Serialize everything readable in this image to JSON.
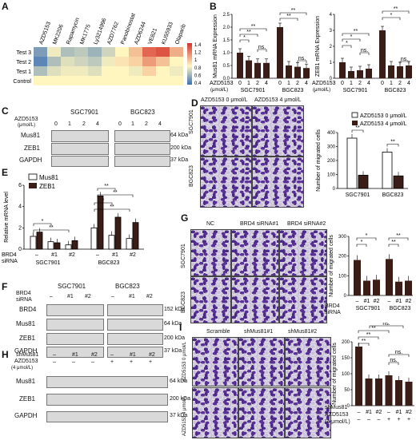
{
  "panels": {
    "A": {
      "label": "A",
      "drugs": [
        "AZD5153",
        "MK2206",
        "Rapamycin",
        "MK1775",
        "Ly3214996",
        "AZD7762",
        "Panobinostat",
        "AZD6244",
        "VE821",
        "KU55933",
        "Olaparib"
      ],
      "rows": [
        "Test 3",
        "Test 2",
        "Test 1",
        "Control"
      ],
      "cells": [
        [
          0.2,
          0.55,
          0.35,
          0.4,
          0.3,
          0.45,
          0.6,
          0.75,
          1.0,
          1.05,
          0.8
        ],
        [
          0.1,
          0.35,
          0.5,
          0.45,
          0.4,
          0.55,
          0.65,
          0.7,
          0.85,
          0.75,
          0.6
        ],
        [
          0.35,
          0.5,
          0.55,
          0.55,
          0.5,
          0.6,
          0.6,
          0.55,
          0.7,
          0.6,
          0.55
        ],
        [
          0.6,
          0.6,
          0.6,
          0.6,
          0.6,
          0.6,
          0.6,
          0.6,
          0.6,
          0.6,
          0.6
        ]
      ],
      "colorbar_ticks": [
        "1.4",
        "1.2",
        "1",
        "0.8",
        "0.6",
        "0.4"
      ],
      "colors": {
        "low": "#3a6fb5",
        "mid": "#fff6bf",
        "high": "#d73027"
      }
    },
    "B": {
      "label": "B",
      "left_ylabel": "Mus81 mRNA Expression",
      "right_ylabel": "ZEB1 mRNA Expression",
      "left_yticks": [
        "0.0",
        "0.5",
        "1.0",
        "1.5",
        "2.0",
        "2.5"
      ],
      "right_yticks": [
        "0",
        "1",
        "2",
        "3",
        "4"
      ],
      "treatment": "AZD5153",
      "unit": "(μmol/L)",
      "doses": [
        "0",
        "1",
        "2",
        "4"
      ],
      "groups": [
        "SGC7901",
        "BGC823"
      ],
      "sig": "**",
      "sig1": "*",
      "ns": "ns."
    },
    "C": {
      "label": "C",
      "treatment": "AZD5153",
      "unit": "(μmol/L)",
      "groups": [
        "SGC7901",
        "BGC823"
      ],
      "doses": [
        "0",
        "1",
        "2",
        "4"
      ],
      "rows": [
        "Mus81",
        "ZEB1",
        "GAPDH"
      ],
      "sizes": [
        "64 kDa",
        "200 kDa",
        "37 kDa"
      ]
    },
    "D": {
      "label": "D",
      "cond1": "AZD5153 0 μmol/L",
      "cond2": "AZD5153 4 μmol/L",
      "rows": [
        "SGC7901",
        "BGC823"
      ],
      "ylabel": "Number of migrated cells",
      "yticks": [
        "0",
        "100",
        "200",
        "300",
        "400"
      ],
      "legend1": "AZD5153 0 μmol/L",
      "legend2": "AZD5153 4 μmol/L",
      "groups": [
        "SGC7901",
        "BGC823"
      ],
      "sig": "**"
    },
    "E": {
      "label": "E",
      "ylabel": "Relative mRNA level",
      "legend1": "Mus81",
      "legend2": "ZEB1",
      "yticks": [
        "0",
        "2",
        "4",
        "6"
      ],
      "treat1": "BRD4",
      "treat2": "siRNA",
      "xlabels": [
        "–",
        "#1",
        "#2",
        "–",
        "#1",
        "#2"
      ],
      "groups": [
        "SGC7901",
        "BGC823"
      ],
      "sig": "**",
      "sig1": "*"
    },
    "F": {
      "label": "F",
      "treat1": "BRD4",
      "treat2": "siRNA",
      "groups": [
        "SGC7901",
        "BGC823"
      ],
      "lanes": [
        "–",
        "#1",
        "#2",
        "–",
        "#1",
        "#2"
      ],
      "rows": [
        "BRD4",
        "Mus81",
        "ZEB1",
        "GAPDH"
      ],
      "sizes": [
        "152 kDa",
        "64 kDa",
        "200 kDa",
        "37 kDa"
      ]
    },
    "G": {
      "label": "G",
      "cols": [
        "NC",
        "BRD4 siRNA#1",
        "BRD4 siRNA#2"
      ],
      "rows": [
        "SGC7901",
        "BGC823"
      ],
      "ylabel": "Number of migrated cells",
      "yticks": [
        "0",
        "100",
        "200",
        "300"
      ],
      "treat1": "BRD4",
      "treat2": "siRNA",
      "xlabels": [
        "–",
        "#1",
        "#2",
        "–",
        "#1",
        "#2"
      ],
      "groups": [
        "SGC7901",
        "BGC823"
      ],
      "sig": "**",
      "sig1": "*"
    },
    "H": {
      "label": "H",
      "treat1": "shMus81",
      "treat2": "AZD5153",
      "treat3": "(4 μmol/L)",
      "sh_values": [
        "–",
        "#1",
        "#2",
        "–",
        "#1",
        "#2"
      ],
      "azd_values": [
        "–",
        "–",
        "–",
        "+",
        "+",
        "+"
      ],
      "rows": [
        "Mus81",
        "ZEB1",
        "GAPDH"
      ],
      "sizes": [
        "64 kDa",
        "200 kDa",
        "37 kDa"
      ]
    },
    "I": {
      "label": "I",
      "cols": [
        "Scramble",
        "shMus81#1",
        "shMus81#2"
      ],
      "row_top": "AZD5153 0 μmol/L",
      "row_bottom": "AZD5153 4 μmol/L",
      "ylabel": "Number of migrated cells",
      "yticks": [
        "0",
        "50",
        "100",
        "150",
        "200"
      ],
      "treat1": "shMus81",
      "treat2": "AZD5153",
      "treat3": "(4 μmol/L)",
      "sh_values": [
        "–",
        "#1",
        "#2",
        "–",
        "#1",
        "#2"
      ],
      "azd_values": [
        "–",
        "–",
        "–",
        "+",
        "+",
        "+"
      ],
      "sig": "**",
      "ns": "ns."
    }
  },
  "chart_data": [
    {
      "type": "heatmap",
      "panel": "A",
      "rows": [
        "Test 3",
        "Test 2",
        "Test 1",
        "Control"
      ],
      "columns": [
        "AZD5153",
        "MK2206",
        "Rapamycin",
        "MK1775",
        "Ly3214996",
        "AZD7762",
        "Panobinostat",
        "AZD6244",
        "VE821",
        "KU55933",
        "Olaparib"
      ],
      "colorbar": [
        0.4,
        1.4
      ]
    },
    {
      "type": "bar",
      "panel": "B-left",
      "ylabel": "Mus81 mRNA Expression",
      "categories": [
        "0",
        "1",
        "2",
        "4",
        "0",
        "1",
        "2",
        "4"
      ],
      "values": [
        1.0,
        0.7,
        0.6,
        0.6,
        2.0,
        0.5,
        0.45,
        0.4
      ],
      "ylim": [
        0,
        2.5
      ]
    },
    {
      "type": "bar",
      "panel": "B-right",
      "ylabel": "ZEB1 mRNA Expression",
      "categories": [
        "0",
        "1",
        "2",
        "4",
        "0",
        "1",
        "2",
        "4"
      ],
      "values": [
        1.0,
        0.45,
        0.5,
        0.6,
        3.0,
        0.8,
        0.75,
        0.8
      ],
      "ylim": [
        0,
        4
      ]
    },
    {
      "type": "bar",
      "panel": "D",
      "ylabel": "Number of migrated cells",
      "categories": [
        "SGC7901",
        "BGC823"
      ],
      "series": [
        {
          "name": "AZD5153 0 μmol/L",
          "values": [
            360,
            260
          ]
        },
        {
          "name": "AZD5153 4 μmol/L",
          "values": [
            95,
            90
          ]
        }
      ],
      "ylim": [
        0,
        400
      ]
    },
    {
      "type": "bar",
      "panel": "E",
      "ylabel": "Relative mRNA level",
      "categories": [
        "–",
        "#1",
        "#2",
        "–",
        "#1",
        "#2"
      ],
      "series": [
        {
          "name": "Mus81",
          "values": [
            1.2,
            0.7,
            0.4,
            2.0,
            1.3,
            1.0
          ]
        },
        {
          "name": "ZEB1",
          "values": [
            1.6,
            0.6,
            0.8,
            5.0,
            3.0,
            2.5
          ]
        }
      ],
      "ylim": [
        0,
        6
      ]
    },
    {
      "type": "bar",
      "panel": "G",
      "ylabel": "Number of migrated cells",
      "categories": [
        "–",
        "#1",
        "#2",
        "–",
        "#1",
        "#2"
      ],
      "values": [
        180,
        75,
        80,
        185,
        70,
        75
      ],
      "ylim": [
        0,
        300
      ]
    },
    {
      "type": "bar",
      "panel": "I",
      "ylabel": "Number of migrated cells",
      "categories": [
        "–",
        "#1",
        "#2",
        "–",
        "#1",
        "#2"
      ],
      "values": [
        185,
        85,
        85,
        95,
        80,
        75
      ],
      "ylim": [
        0,
        200
      ]
    }
  ]
}
